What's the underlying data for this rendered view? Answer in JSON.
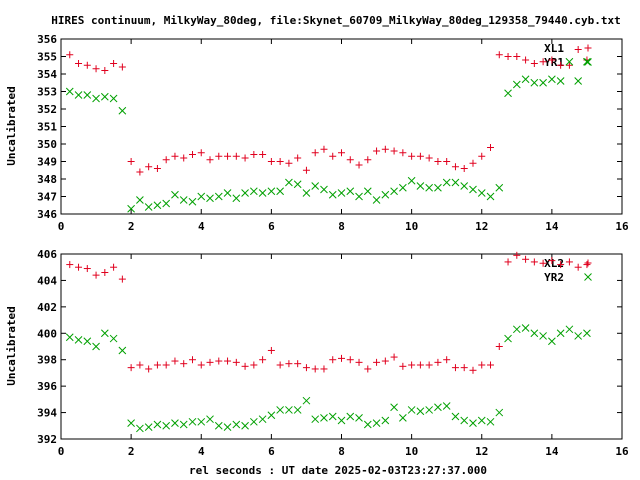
{
  "title": "HIRES continuum, MilkyWay_80deg, file:Skynet_60709_MilkyWay_80deg_129358_79440.cyb.txt",
  "xlabel": "rel seconds : UT date 2025-02-03T23:27:37.000",
  "chart_data": [
    {
      "type": "scatter",
      "title": "HIRES continuum, MilkyWay_80deg, file:Skynet_60709_MilkyWay_80deg_129358_79440.cyb.txt",
      "xlabel": "",
      "ylabel": "Uncalibrated",
      "xlim": [
        0,
        16
      ],
      "ylim": [
        346,
        356
      ],
      "xticks": [
        "0",
        "2",
        "4",
        "6",
        "8",
        "10",
        "12",
        "14",
        "16"
      ],
      "yticks": [
        "346",
        "347",
        "348",
        "349",
        "350",
        "351",
        "352",
        "353",
        "354",
        "355",
        "356"
      ],
      "legend_position": "top-right",
      "series": [
        {
          "name": "XL1",
          "marker": "plus",
          "color": "#e0001e",
          "x": [
            0.25,
            0.5,
            0.75,
            1.0,
            1.25,
            1.5,
            1.75,
            2.0,
            2.25,
            2.5,
            2.75,
            3.0,
            3.25,
            3.5,
            3.75,
            4.0,
            4.25,
            4.5,
            4.75,
            5.0,
            5.25,
            5.5,
            5.75,
            6.0,
            6.25,
            6.5,
            6.75,
            7.0,
            7.25,
            7.5,
            7.75,
            8.0,
            8.25,
            8.5,
            8.75,
            9.0,
            9.25,
            9.5,
            9.75,
            10.0,
            10.25,
            10.5,
            10.75,
            11.0,
            11.25,
            11.5,
            11.75,
            12.0,
            12.25,
            12.5,
            12.75,
            13.0,
            13.25,
            13.5,
            13.75,
            14.0,
            14.25,
            14.5,
            14.75,
            15.0
          ],
          "y": [
            355.1,
            354.6,
            354.5,
            354.3,
            354.2,
            354.6,
            354.4,
            349.0,
            348.4,
            348.7,
            348.6,
            349.1,
            349.3,
            349.2,
            349.4,
            349.5,
            349.1,
            349.3,
            349.3,
            349.3,
            349.2,
            349.4,
            349.4,
            349.0,
            349.0,
            348.9,
            349.2,
            348.5,
            349.5,
            349.7,
            349.3,
            349.5,
            349.1,
            348.8,
            349.1,
            349.6,
            349.7,
            349.6,
            349.5,
            349.3,
            349.3,
            349.2,
            349.0,
            349.0,
            348.7,
            348.6,
            348.9,
            349.3,
            349.8,
            355.1,
            355.0,
            355.0,
            354.8,
            354.6,
            354.7,
            354.8,
            354.5,
            354.5,
            355.4,
            354.8
          ]
        },
        {
          "name": "YR1",
          "marker": "x",
          "color": "#00a000",
          "x": [
            0.25,
            0.5,
            0.75,
            1.0,
            1.25,
            1.5,
            1.75,
            2.0,
            2.25,
            2.5,
            2.75,
            3.0,
            3.25,
            3.5,
            3.75,
            4.0,
            4.25,
            4.5,
            4.75,
            5.0,
            5.25,
            5.5,
            5.75,
            6.0,
            6.25,
            6.5,
            6.75,
            7.0,
            7.25,
            7.5,
            7.75,
            8.0,
            8.25,
            8.5,
            8.75,
            9.0,
            9.25,
            9.5,
            9.75,
            10.0,
            10.25,
            10.5,
            10.75,
            11.0,
            11.25,
            11.5,
            11.75,
            12.0,
            12.25,
            12.5,
            12.75,
            13.0,
            13.25,
            13.5,
            13.75,
            14.0,
            14.25,
            14.5,
            14.75,
            15.0
          ],
          "y": [
            353.0,
            352.8,
            352.8,
            352.6,
            352.7,
            352.6,
            351.9,
            346.3,
            346.8,
            346.4,
            346.5,
            346.6,
            347.1,
            346.8,
            346.7,
            347.0,
            346.9,
            347.0,
            347.2,
            346.9,
            347.2,
            347.3,
            347.2,
            347.3,
            347.3,
            347.8,
            347.7,
            347.2,
            347.6,
            347.4,
            347.1,
            347.2,
            347.3,
            347.0,
            347.3,
            346.8,
            347.1,
            347.3,
            347.5,
            347.9,
            347.6,
            347.5,
            347.5,
            347.8,
            347.8,
            347.6,
            347.4,
            347.2,
            347.0,
            347.5,
            352.9,
            353.4,
            353.7,
            353.5,
            353.5,
            353.7,
            353.6,
            354.7,
            353.6,
            354.7
          ]
        }
      ]
    },
    {
      "type": "scatter",
      "title": "",
      "xlabel": "rel seconds : UT date 2025-02-03T23:27:37.000",
      "ylabel": "Uncalibrated",
      "xlim": [
        0,
        16
      ],
      "ylim": [
        392,
        406
      ],
      "xticks": [
        "0",
        "2",
        "4",
        "6",
        "8",
        "10",
        "12",
        "14",
        "16"
      ],
      "yticks": [
        "392",
        "394",
        "396",
        "398",
        "400",
        "402",
        "404",
        "406"
      ],
      "legend_position": "top-right",
      "series": [
        {
          "name": "XL2",
          "marker": "plus",
          "color": "#e0001e",
          "x": [
            0.25,
            0.5,
            0.75,
            1.0,
            1.25,
            1.5,
            1.75,
            2.0,
            2.25,
            2.5,
            2.75,
            3.0,
            3.25,
            3.5,
            3.75,
            4.0,
            4.25,
            4.5,
            4.75,
            5.0,
            5.25,
            5.5,
            5.75,
            6.0,
            6.25,
            6.5,
            6.75,
            7.0,
            7.25,
            7.5,
            7.75,
            8.0,
            8.25,
            8.5,
            8.75,
            9.0,
            9.25,
            9.5,
            9.75,
            10.0,
            10.25,
            10.5,
            10.75,
            11.0,
            11.25,
            11.5,
            11.75,
            12.0,
            12.25,
            12.5,
            12.75,
            13.0,
            13.25,
            13.5,
            13.75,
            14.0,
            14.25,
            14.5,
            14.75,
            15.0
          ],
          "y": [
            405.2,
            405.0,
            404.9,
            404.4,
            404.6,
            405.0,
            404.1,
            397.4,
            397.6,
            397.3,
            397.6,
            397.6,
            397.9,
            397.7,
            398.0,
            397.6,
            397.8,
            397.9,
            397.9,
            397.8,
            397.5,
            397.6,
            398.0,
            398.7,
            397.6,
            397.7,
            397.7,
            397.4,
            397.3,
            397.3,
            398.0,
            398.1,
            398.0,
            397.8,
            397.3,
            397.8,
            397.9,
            398.2,
            397.5,
            397.6,
            397.6,
            397.6,
            397.8,
            398.0,
            397.4,
            397.4,
            397.2,
            397.6,
            397.6,
            399.0,
            405.4,
            405.9,
            405.6,
            405.4,
            405.3,
            405.5,
            405.2,
            405.4,
            405.0,
            405.2
          ]
        },
        {
          "name": "YR2",
          "marker": "x",
          "color": "#00a000",
          "x": [
            0.25,
            0.5,
            0.75,
            1.0,
            1.25,
            1.5,
            1.75,
            2.0,
            2.25,
            2.5,
            2.75,
            3.0,
            3.25,
            3.5,
            3.75,
            4.0,
            4.25,
            4.5,
            4.75,
            5.0,
            5.25,
            5.5,
            5.75,
            6.0,
            6.25,
            6.5,
            6.75,
            7.0,
            7.25,
            7.5,
            7.75,
            8.0,
            8.25,
            8.5,
            8.75,
            9.0,
            9.25,
            9.5,
            9.75,
            10.0,
            10.25,
            10.5,
            10.75,
            11.0,
            11.25,
            11.5,
            11.75,
            12.0,
            12.25,
            12.5,
            12.75,
            13.0,
            13.25,
            13.5,
            13.75,
            14.0,
            14.25,
            14.5,
            14.75,
            15.0
          ],
          "y": [
            399.7,
            399.5,
            399.4,
            399.0,
            400.0,
            399.6,
            398.7,
            393.2,
            392.8,
            392.9,
            393.1,
            393.0,
            393.2,
            393.1,
            393.3,
            393.3,
            393.5,
            393.0,
            392.9,
            393.1,
            393.0,
            393.3,
            393.5,
            393.8,
            394.2,
            394.2,
            394.2,
            394.9,
            393.5,
            393.6,
            393.7,
            393.4,
            393.7,
            393.6,
            393.1,
            393.2,
            393.4,
            394.4,
            393.6,
            394.2,
            394.1,
            394.2,
            394.4,
            394.5,
            393.7,
            393.4,
            393.2,
            393.4,
            393.3,
            394.0,
            399.6,
            400.3,
            400.4,
            400.0,
            399.8,
            399.4,
            400.0,
            400.3,
            399.8,
            400.0
          ]
        }
      ]
    }
  ]
}
